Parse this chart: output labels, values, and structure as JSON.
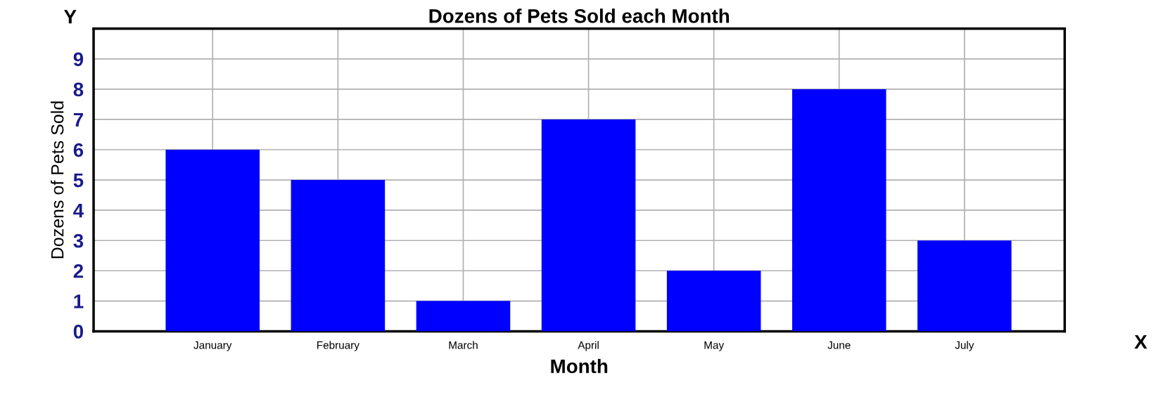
{
  "chart_data": {
    "type": "bar",
    "title": "Dozens of Pets Sold each Month",
    "xlabel": "Month",
    "ylabel": "Dozens of Pets Sold",
    "categories": [
      "January",
      "February",
      "March",
      "April",
      "May",
      "June",
      "July"
    ],
    "values": [
      6,
      5,
      1,
      7,
      2,
      8,
      3
    ],
    "color": "#0000ff",
    "ylim": [
      0,
      10
    ],
    "yticks": [
      0,
      1,
      2,
      3,
      4,
      5,
      6,
      7,
      8,
      9
    ],
    "grid": true,
    "annotations": [
      "Y",
      "X"
    ]
  }
}
